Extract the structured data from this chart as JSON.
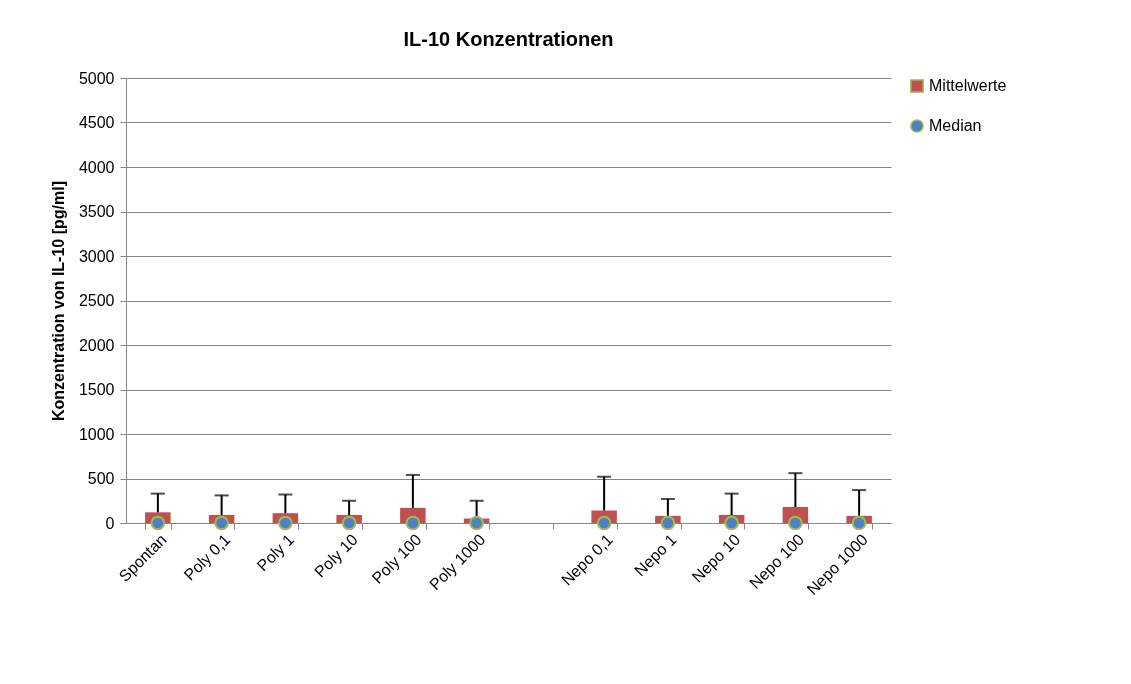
{
  "chart_data": {
    "type": "bar",
    "title": "IL-10 Konzentrationen",
    "ylabel": "Konzentration von IL-10 [pg/ml]",
    "categories": [
      "Spontan",
      "Poly 0,1",
      "Poly 1",
      "Poly 10",
      "Poly 100",
      "Poly 1000",
      null,
      "Nepo 0,1",
      "Nepo 1",
      "Nepo 10",
      "Nepo 100",
      "Nepo 1000"
    ],
    "series": [
      {
        "name": "Mittelwerte",
        "color": "#c0504d",
        "values": [
          120,
          90,
          110,
          90,
          170,
          50,
          null,
          140,
          80,
          90,
          180,
          80
        ],
        "errors": [
          [
            120,
            330
          ],
          [
            90,
            310
          ],
          [
            110,
            320
          ],
          [
            90,
            250
          ],
          [
            170,
            540
          ],
          [
            50,
            250
          ],
          null,
          [
            140,
            520
          ],
          [
            80,
            270
          ],
          [
            90,
            330
          ],
          [
            180,
            560
          ],
          [
            80,
            370
          ]
        ]
      },
      {
        "name": "Median",
        "type": "scatter",
        "marker": "circle",
        "color": "#4f81bd",
        "values": [
          0,
          0,
          0,
          0,
          0,
          0,
          null,
          0,
          0,
          0,
          0,
          0
        ]
      }
    ],
    "ylim": [
      0,
      5000
    ],
    "yticks": [
      0,
      500,
      1000,
      1500,
      2000,
      2500,
      3000,
      3500,
      4000,
      4500,
      5000
    ],
    "grid": "y",
    "legend": "right"
  }
}
